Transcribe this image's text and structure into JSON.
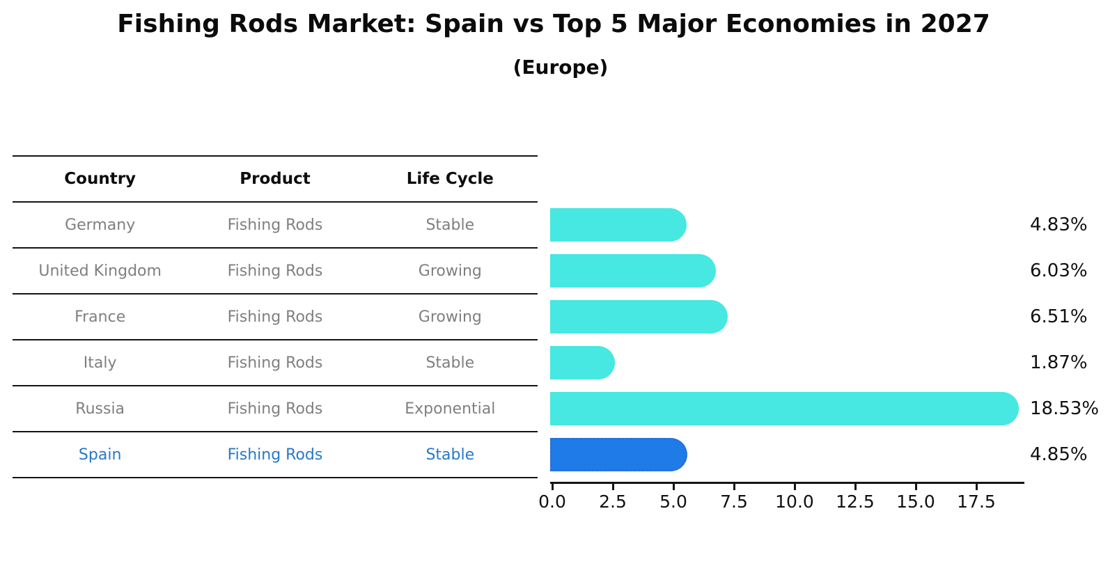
{
  "header": {
    "title": "Fishing Rods Market: Spain vs Top 5 Major Economies in 2027",
    "subtitle": "(Europe)"
  },
  "table": {
    "headers": [
      "Country",
      "Product",
      "Life Cycle"
    ],
    "rows": [
      {
        "country": "Germany",
        "product": "Fishing Rods",
        "life_cycle": "Stable",
        "highlight": false
      },
      {
        "country": "United Kingdom",
        "product": "Fishing Rods",
        "life_cycle": "Growing",
        "highlight": false
      },
      {
        "country": "France",
        "product": "Fishing Rods",
        "life_cycle": "Growing",
        "highlight": false
      },
      {
        "country": "Italy",
        "product": "Fishing Rods",
        "life_cycle": "Stable",
        "highlight": false
      },
      {
        "country": "Russia",
        "product": "Fishing Rods",
        "life_cycle": "Exponential",
        "highlight": false
      },
      {
        "country": "Spain",
        "product": "Fishing Rods",
        "life_cycle": "Stable",
        "highlight": true
      }
    ]
  },
  "chart_data": {
    "type": "bar",
    "orientation": "horizontal",
    "title": "Fishing Rods Market: Spain vs Top 5 Major Economies in 2027",
    "subtitle": "(Europe)",
    "categories": [
      "Germany",
      "United Kingdom",
      "France",
      "Italy",
      "Russia",
      "Spain"
    ],
    "values": [
      4.83,
      6.03,
      6.51,
      1.87,
      18.53,
      4.85
    ],
    "value_labels": [
      "4.83%",
      "6.03%",
      "6.51%",
      "1.87%",
      "18.53%",
      "4.85%"
    ],
    "unit": "percent CAGR",
    "xlim": [
      0,
      19.5
    ],
    "x_ticks": [
      "0.0",
      "2.5",
      "5.0",
      "7.5",
      "10.0",
      "12.5",
      "15.0",
      "17.5"
    ],
    "x_tick_values": [
      0.0,
      2.5,
      5.0,
      7.5,
      10.0,
      12.5,
      15.0,
      17.5
    ],
    "grid": false,
    "legend": "none",
    "highlight_category": "Spain",
    "colors": {
      "bar": "#46e8e1",
      "highlight_bar": "#1e7be8",
      "highlight_border": "#2f6fd0",
      "highlight_text": "#2878c8",
      "row_text": "#7f7f7f",
      "header_text": "#0d0d0d",
      "axis": "#141414"
    }
  }
}
